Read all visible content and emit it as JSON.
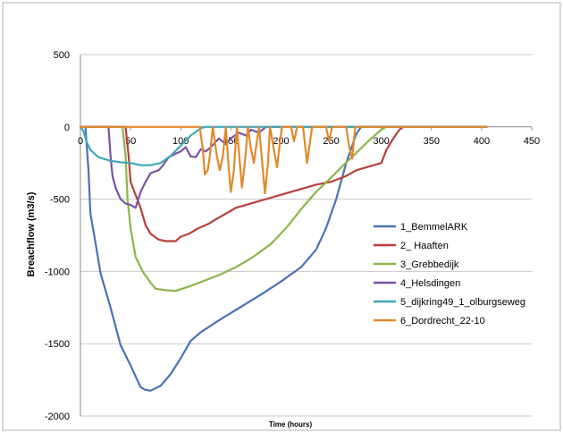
{
  "chart_data": {
    "type": "line",
    "title": "",
    "xlabel": "Time (hours)",
    "ylabel": "Breachflow (m3/s)",
    "xlim": [
      0,
      450
    ],
    "ylim": [
      -2000,
      500
    ],
    "x_ticks": [
      {
        "value": 0,
        "label": "0"
      },
      {
        "value": 50,
        "label": "50"
      },
      {
        "value": 100,
        "label": "100"
      },
      {
        "value": 150,
        "label": "150"
      },
      {
        "value": 200,
        "label": "200"
      },
      {
        "value": 250,
        "label": "250"
      },
      {
        "value": 300,
        "label": "300"
      },
      {
        "value": 350,
        "label": "350"
      },
      {
        "value": 400,
        "label": "400"
      },
      {
        "value": 450,
        "label": "450"
      }
    ],
    "y_ticks": [
      {
        "value": 500,
        "label": "500"
      },
      {
        "value": 0,
        "label": "0"
      },
      {
        "value": -500,
        "label": "-500"
      },
      {
        "value": -1000,
        "label": "-1000"
      },
      {
        "value": -1500,
        "label": "-1500"
      },
      {
        "value": -2000,
        "label": "-2000"
      }
    ],
    "grid": {
      "horizontal": true,
      "vertical": false
    },
    "legend": "right",
    "series": [
      {
        "name": "1_BemmelARK",
        "color": "#4a73b8",
        "points": [
          [
            0,
            0
          ],
          [
            5,
            0
          ],
          [
            8,
            -300
          ],
          [
            10,
            -600
          ],
          [
            15,
            -800
          ],
          [
            20,
            -1010
          ],
          [
            30,
            -1250
          ],
          [
            40,
            -1510
          ],
          [
            50,
            -1650
          ],
          [
            60,
            -1800
          ],
          [
            65,
            -1820
          ],
          [
            70,
            -1825
          ],
          [
            80,
            -1790
          ],
          [
            90,
            -1710
          ],
          [
            100,
            -1600
          ],
          [
            110,
            -1480
          ],
          [
            120,
            -1420
          ],
          [
            140,
            -1330
          ],
          [
            160,
            -1245
          ],
          [
            180,
            -1160
          ],
          [
            200,
            -1070
          ],
          [
            220,
            -970
          ],
          [
            235,
            -850
          ],
          [
            245,
            -700
          ],
          [
            255,
            -500
          ],
          [
            265,
            -250
          ],
          [
            275,
            -50
          ],
          [
            280,
            0
          ],
          [
            405,
            0
          ]
        ]
      },
      {
        "name": "2_ Haaften",
        "color": "#b8403b",
        "points": [
          [
            0,
            0
          ],
          [
            45,
            0
          ],
          [
            48,
            -200
          ],
          [
            50,
            -380
          ],
          [
            55,
            -470
          ],
          [
            60,
            -560
          ],
          [
            65,
            -680
          ],
          [
            70,
            -740
          ],
          [
            78,
            -780
          ],
          [
            85,
            -790
          ],
          [
            95,
            -790
          ],
          [
            100,
            -760
          ],
          [
            108,
            -740
          ],
          [
            118,
            -700
          ],
          [
            128,
            -670
          ],
          [
            135,
            -640
          ],
          [
            145,
            -600
          ],
          [
            155,
            -560
          ],
          [
            165,
            -540
          ],
          [
            175,
            -520
          ],
          [
            190,
            -490
          ],
          [
            205,
            -460
          ],
          [
            220,
            -430
          ],
          [
            235,
            -400
          ],
          [
            250,
            -380
          ],
          [
            265,
            -340
          ],
          [
            275,
            -300
          ],
          [
            290,
            -270
          ],
          [
            300,
            -250
          ],
          [
            305,
            -160
          ],
          [
            312,
            -80
          ],
          [
            318,
            -20
          ],
          [
            322,
            0
          ],
          [
            405,
            0
          ]
        ]
      },
      {
        "name": "3_Grebbedijk",
        "color": "#8eb54a",
        "points": [
          [
            0,
            0
          ],
          [
            42,
            0
          ],
          [
            45,
            -200
          ],
          [
            47,
            -500
          ],
          [
            50,
            -700
          ],
          [
            55,
            -900
          ],
          [
            62,
            -1000
          ],
          [
            70,
            -1080
          ],
          [
            75,
            -1120
          ],
          [
            85,
            -1130
          ],
          [
            95,
            -1135
          ],
          [
            110,
            -1100
          ],
          [
            125,
            -1060
          ],
          [
            140,
            -1020
          ],
          [
            155,
            -970
          ],
          [
            170,
            -910
          ],
          [
            180,
            -860
          ],
          [
            190,
            -810
          ],
          [
            205,
            -700
          ],
          [
            220,
            -570
          ],
          [
            235,
            -450
          ],
          [
            250,
            -350
          ],
          [
            260,
            -280
          ],
          [
            275,
            -180
          ],
          [
            290,
            -80
          ],
          [
            300,
            -20
          ],
          [
            305,
            0
          ],
          [
            405,
            0
          ]
        ]
      },
      {
        "name": "4_Helsdingen",
        "color": "#7a53a8",
        "points": [
          [
            0,
            0
          ],
          [
            28,
            0
          ],
          [
            30,
            -200
          ],
          [
            32,
            -340
          ],
          [
            35,
            -420
          ],
          [
            40,
            -500
          ],
          [
            45,
            -530
          ],
          [
            50,
            -540
          ],
          [
            55,
            -560
          ],
          [
            60,
            -450
          ],
          [
            65,
            -380
          ],
          [
            70,
            -320
          ],
          [
            78,
            -300
          ],
          [
            82,
            -270
          ],
          [
            88,
            -210
          ],
          [
            95,
            -185
          ],
          [
            100,
            -170
          ],
          [
            105,
            -140
          ],
          [
            110,
            -205
          ],
          [
            115,
            -210
          ],
          [
            120,
            -155
          ],
          [
            125,
            -170
          ],
          [
            130,
            -140
          ],
          [
            138,
            -80
          ],
          [
            145,
            -120
          ],
          [
            150,
            -80
          ],
          [
            158,
            -40
          ],
          [
            165,
            -60
          ],
          [
            170,
            -20
          ],
          [
            178,
            -40
          ],
          [
            185,
            0
          ],
          [
            405,
            0
          ]
        ]
      },
      {
        "name": "5_dijkring49_1_olburgseweg",
        "color": "#3fa8b8",
        "points": [
          [
            0,
            0
          ],
          [
            3,
            -30
          ],
          [
            6,
            -100
          ],
          [
            10,
            -160
          ],
          [
            18,
            -210
          ],
          [
            30,
            -235
          ],
          [
            40,
            -245
          ],
          [
            50,
            -250
          ],
          [
            60,
            -265
          ],
          [
            70,
            -265
          ],
          [
            80,
            -250
          ],
          [
            90,
            -200
          ],
          [
            100,
            -130
          ],
          [
            110,
            -60
          ],
          [
            120,
            -10
          ],
          [
            125,
            0
          ],
          [
            405,
            0
          ]
        ]
      },
      {
        "name": "6_Dordrecht_22-10",
        "color": "#e08a2e",
        "points": [
          [
            0,
            0
          ],
          [
            119,
            0
          ],
          [
            122,
            -150
          ],
          [
            124,
            -330
          ],
          [
            127,
            -300
          ],
          [
            129,
            -200
          ],
          [
            132,
            0
          ],
          [
            136,
            -200
          ],
          [
            139,
            -300
          ],
          [
            142,
            -200
          ],
          [
            145,
            0
          ],
          [
            148,
            -300
          ],
          [
            150,
            -450
          ],
          [
            153,
            -300
          ],
          [
            156,
            0
          ],
          [
            159,
            -250
          ],
          [
            161,
            -420
          ],
          [
            164,
            -250
          ],
          [
            167,
            0
          ],
          [
            170,
            -150
          ],
          [
            173,
            -250
          ],
          [
            176,
            -100
          ],
          [
            178,
            0
          ],
          [
            182,
            -300
          ],
          [
            184,
            -460
          ],
          [
            187,
            -250
          ],
          [
            189,
            0
          ],
          [
            194,
            -200
          ],
          [
            196,
            -280
          ],
          [
            199,
            -100
          ],
          [
            201,
            0
          ],
          [
            210,
            0
          ],
          [
            213,
            -100
          ],
          [
            216,
            0
          ],
          [
            222,
            0
          ],
          [
            226,
            -250
          ],
          [
            229,
            -100
          ],
          [
            231,
            0
          ],
          [
            245,
            0
          ],
          [
            248,
            -100
          ],
          [
            251,
            0
          ],
          [
            265,
            0
          ],
          [
            268,
            -140
          ],
          [
            271,
            -220
          ],
          [
            274,
            0
          ],
          [
            405,
            0
          ]
        ]
      }
    ]
  }
}
